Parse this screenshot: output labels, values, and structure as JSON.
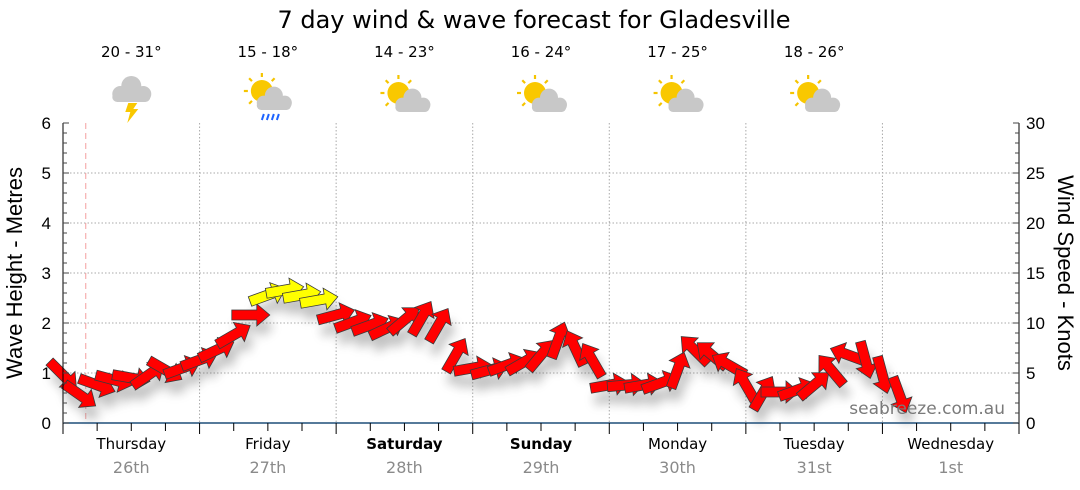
{
  "chart_data": {
    "type": "scatter",
    "title": "7 day wind & wave forecast for Gladesville",
    "ylabel_left": "Wave Height - Metres",
    "ylabel_right": "Wind Speed - Knots",
    "ylim_left": [
      0,
      6
    ],
    "ylim_right": [
      0,
      30
    ],
    "yticks_left": [
      "0",
      "1",
      "2",
      "3",
      "4",
      "5",
      "6"
    ],
    "yticks_right": [
      "0",
      "5",
      "10",
      "15",
      "20",
      "25",
      "30"
    ],
    "grid": true,
    "watermark": "seabreeze.com.au",
    "days": [
      {
        "day": "Thursday",
        "date": "26th",
        "bold": false,
        "temp": "20 - 31°",
        "icon": "thunderstorm-icon"
      },
      {
        "day": "Friday",
        "date": "27th",
        "bold": false,
        "temp": "15 - 18°",
        "icon": "sun-cloud-rain-icon"
      },
      {
        "day": "Saturday",
        "date": "28th",
        "bold": true,
        "temp": "14 - 23°",
        "icon": "partly-cloudy-icon"
      },
      {
        "day": "Sunday",
        "date": "29th",
        "bold": true,
        "temp": "16 - 24°",
        "icon": "partly-cloudy-icon"
      },
      {
        "day": "Monday",
        "date": "30th",
        "bold": false,
        "temp": "17 - 25°",
        "icon": "partly-cloudy-icon"
      },
      {
        "day": "Tuesday",
        "date": "31st",
        "bold": false,
        "temp": "18 - 26°",
        "icon": "partly-cloudy-icon"
      },
      {
        "day": "Wednesday",
        "date": "1st",
        "bold": false,
        "temp": "",
        "icon": ""
      }
    ],
    "now_hour": 4,
    "wind_series": {
      "name": "Wind",
      "x_hours_step": 3,
      "speed_knots": [
        4.8,
        2.8,
        3.8,
        4.3,
        4.5,
        4.8,
        5.3,
        5.5,
        6.3,
        7.3,
        8.8,
        10.8,
        12.8,
        13.3,
        12.8,
        12.3,
        10.8,
        10.1,
        9.8,
        9.5,
        10.3,
        10.5,
        9.8,
        6.8,
        5.5,
        5.3,
        5.8,
        6.1,
        6.8,
        8.3,
        7.5,
        6.3,
        3.8,
        3.8,
        3.8,
        4.0,
        5.3,
        7.3,
        6.8,
        5.8,
        3.8,
        3.0,
        3.1,
        3.3,
        3.8,
        5.3,
        6.8,
        6.3,
        4.8,
        2.8
      ],
      "arrow_angle_deg": [
        45,
        35,
        20,
        15,
        10,
        -35,
        30,
        -20,
        -20,
        -25,
        -30,
        0,
        -20,
        -10,
        -10,
        -10,
        -15,
        -20,
        -20,
        -25,
        -40,
        -60,
        -60,
        -60,
        -10,
        -15,
        -20,
        -30,
        -50,
        -70,
        -115,
        -120,
        -10,
        -5,
        -10,
        -20,
        -70,
        -135,
        -140,
        -150,
        -120,
        -60,
        0,
        -20,
        -40,
        -130,
        -160,
        75,
        75,
        70
      ]
    },
    "colors": {
      "strong": "#ffff00",
      "normal": "#ff0000",
      "grid": "#aaaaaa",
      "axis": "#1f4e79",
      "now_line": "#f4a0a0"
    },
    "strong_threshold_knots": 12
  }
}
